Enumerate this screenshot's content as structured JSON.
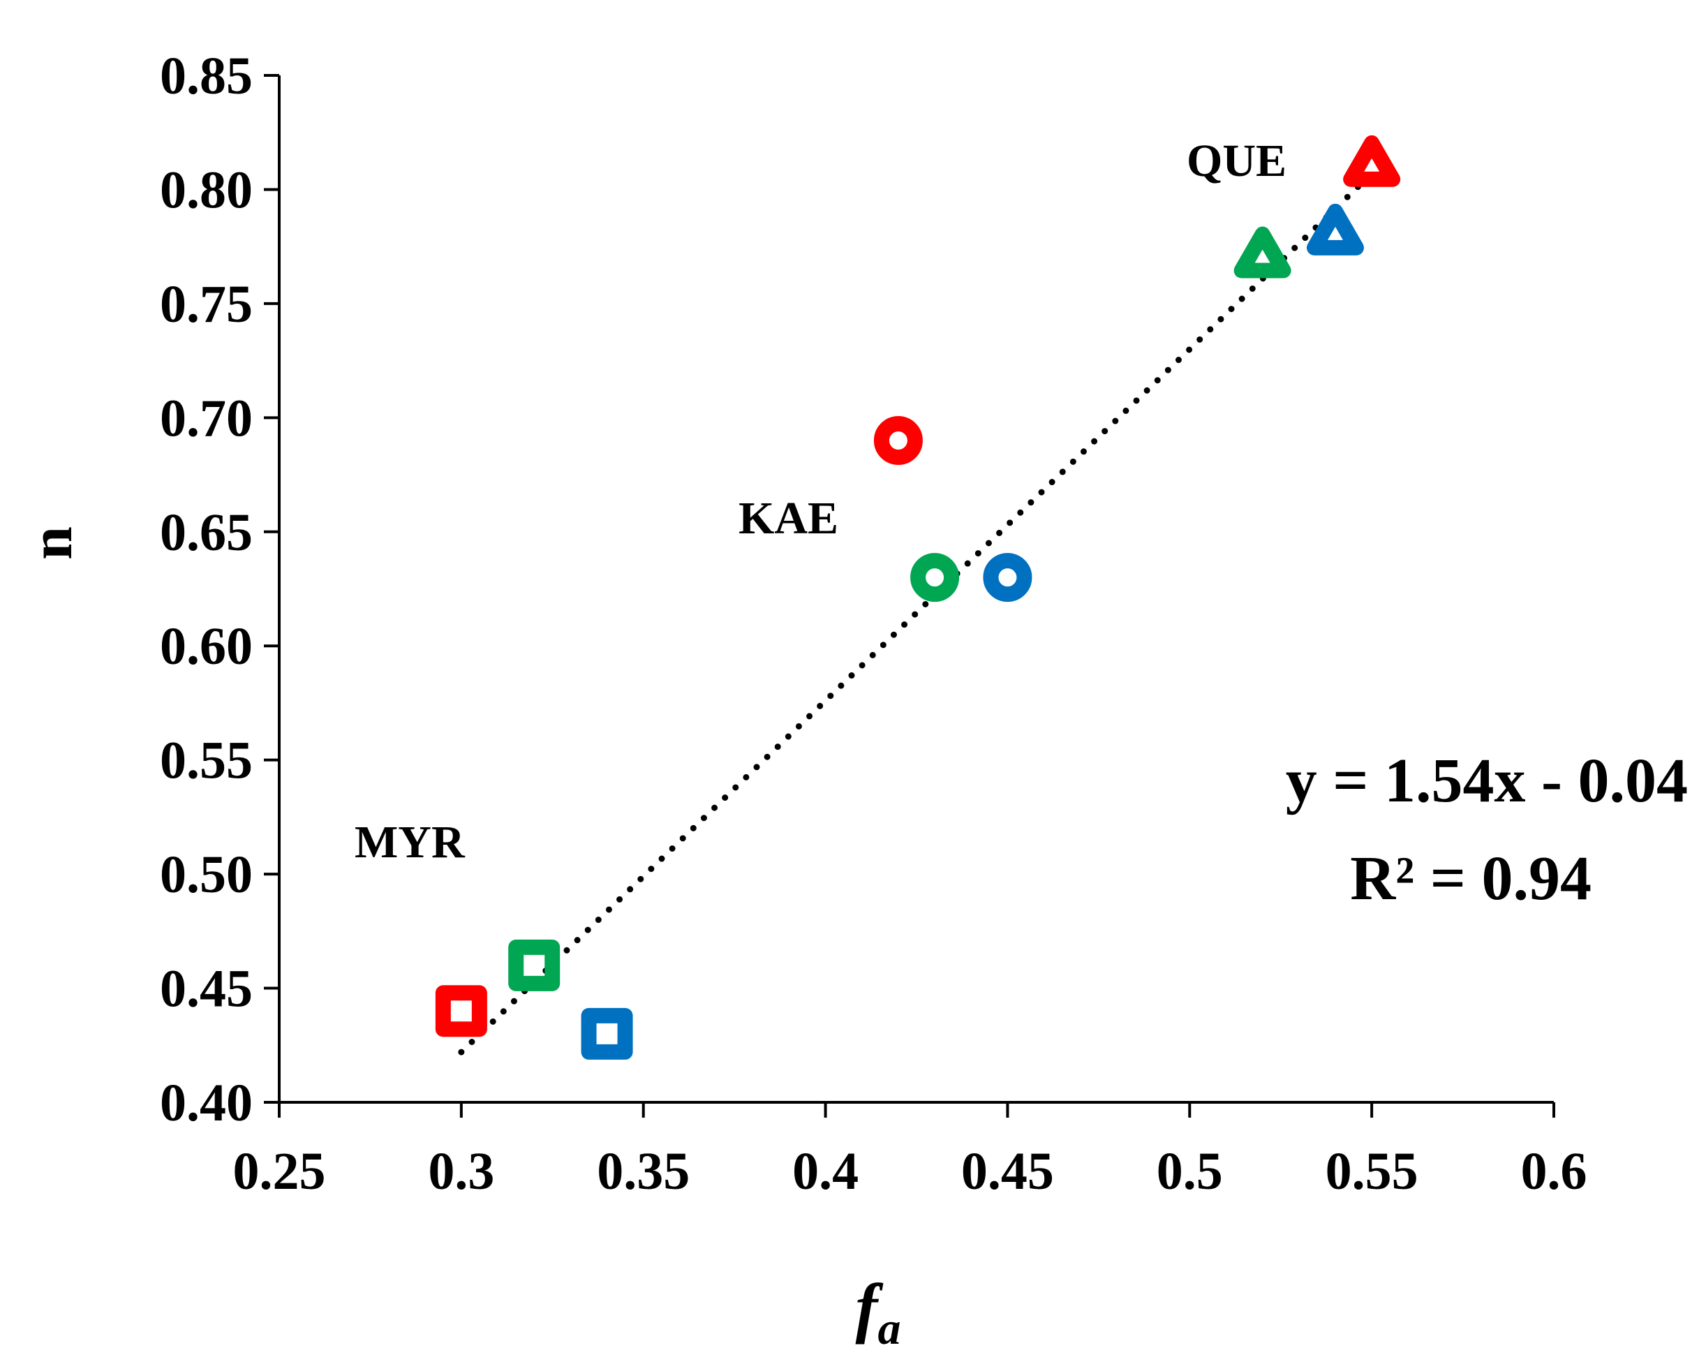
{
  "chart_data": {
    "type": "scatter",
    "xlabel": "f",
    "xlabel_sub": "a",
    "ylabel": "n",
    "xlim": [
      0.25,
      0.6
    ],
    "ylim": [
      0.4,
      0.85
    ],
    "xticks": [
      0.25,
      0.3,
      0.35,
      0.4,
      0.45,
      0.5,
      0.55,
      0.6
    ],
    "xtick_labels": [
      "0.25",
      "0.3",
      "0.35",
      "0.4",
      "0.45",
      "0.5",
      "0.55",
      "0.6"
    ],
    "yticks": [
      0.4,
      0.45,
      0.5,
      0.55,
      0.6,
      0.65,
      0.7,
      0.75,
      0.8,
      0.85
    ],
    "ytick_labels": [
      "0.40",
      "0.45",
      "0.50",
      "0.55",
      "0.60",
      "0.65",
      "0.70",
      "0.75",
      "0.80",
      "0.85"
    ],
    "colors": {
      "red": "#ff0000",
      "green": "#00a651",
      "blue": "#0070c0"
    },
    "groups": [
      {
        "name": "MYR",
        "marker": "square",
        "points": [
          {
            "x": 0.3,
            "y": 0.44,
            "color": "red"
          },
          {
            "x": 0.32,
            "y": 0.46,
            "color": "green"
          },
          {
            "x": 0.34,
            "y": 0.43,
            "color": "blue"
          }
        ]
      },
      {
        "name": "KAE",
        "marker": "circle",
        "points": [
          {
            "x": 0.42,
            "y": 0.69,
            "color": "red"
          },
          {
            "x": 0.43,
            "y": 0.63,
            "color": "green"
          },
          {
            "x": 0.45,
            "y": 0.63,
            "color": "blue"
          }
        ]
      },
      {
        "name": "QUE",
        "marker": "triangle",
        "points": [
          {
            "x": 0.55,
            "y": 0.81,
            "color": "red"
          },
          {
            "x": 0.52,
            "y": 0.77,
            "color": "green"
          },
          {
            "x": 0.54,
            "y": 0.78,
            "color": "blue"
          }
        ]
      }
    ],
    "trendline": {
      "slope": 1.54,
      "intercept": -0.04,
      "x_start": 0.3,
      "x_end": 0.55,
      "style": "dotted"
    },
    "equation_text": "y = 1.54x - 0.04",
    "r2_text": "R² = 0.94"
  }
}
